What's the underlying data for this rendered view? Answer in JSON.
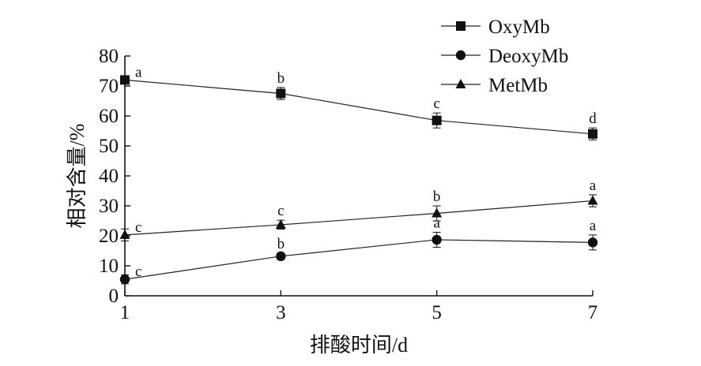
{
  "chart_data": {
    "type": "line",
    "xlabel": "排酸时间/d",
    "ylabel": "相对含量/%",
    "x": [
      1,
      3,
      5,
      7
    ],
    "xticks": [
      "1",
      "3",
      "5",
      "7"
    ],
    "xlim": [
      1,
      7
    ],
    "ylim": [
      0,
      80
    ],
    "yticks": [
      "0",
      "10",
      "20",
      "30",
      "40",
      "50",
      "60",
      "70",
      "80"
    ],
    "grid": false,
    "legend_position": "top-right",
    "series": [
      {
        "name": "OxyMb",
        "marker": "square",
        "values": [
          72,
          67.5,
          58.5,
          54
        ],
        "errors": [
          1.2,
          2.0,
          2.5,
          2.0
        ],
        "labels": [
          "a",
          "b",
          "c",
          "d"
        ]
      },
      {
        "name": "DeoxyMb",
        "marker": "circle",
        "values": [
          5.5,
          13.2,
          18.7,
          17.8
        ],
        "errors": [
          1.5,
          1.0,
          2.5,
          2.5
        ],
        "labels": [
          "c",
          "b",
          "a",
          "a"
        ]
      },
      {
        "name": "MetMb",
        "marker": "triangle",
        "values": [
          20.3,
          23.7,
          27.5,
          31.7
        ],
        "errors": [
          2.0,
          1.5,
          2.5,
          2.0
        ],
        "labels": [
          "c",
          "c",
          "b",
          "a"
        ]
      }
    ],
    "colors": {
      "line": "#222222",
      "marker": "#111111",
      "axis": "#111111"
    }
  }
}
